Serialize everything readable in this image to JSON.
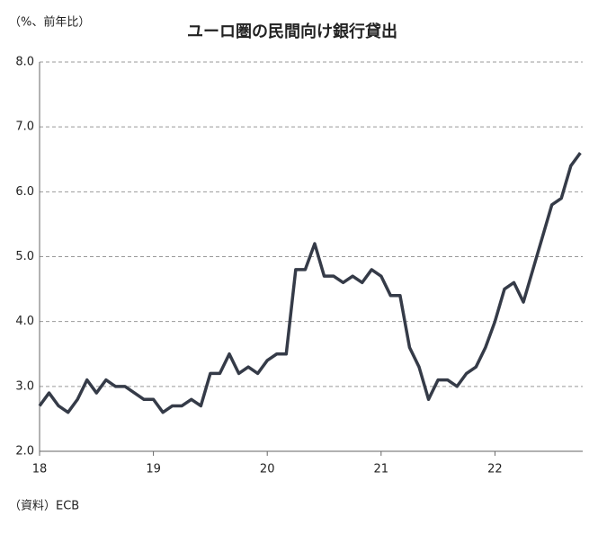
{
  "chart_data": {
    "type": "line",
    "title": "ユーロ圏の民間向け銀行貸出",
    "y_label": "（%、前年比）",
    "source": "（資料）ECB",
    "categories": [
      "18",
      null,
      null,
      null,
      null,
      null,
      null,
      null,
      null,
      null,
      null,
      null,
      "19",
      null,
      null,
      null,
      null,
      null,
      null,
      null,
      null,
      null,
      null,
      null,
      "20",
      null,
      null,
      null,
      null,
      null,
      null,
      null,
      null,
      null,
      null,
      null,
      "21",
      null,
      null,
      null,
      null,
      null,
      null,
      null,
      null,
      null,
      null,
      null,
      "22",
      null,
      null,
      null,
      null,
      null,
      null,
      null,
      null,
      null
    ],
    "series": [
      {
        "name": "民間向け銀行貸出",
        "color": "#353b48",
        "values": [
          2.7,
          2.9,
          2.7,
          2.6,
          2.8,
          3.1,
          2.9,
          3.1,
          3.0,
          3.0,
          2.9,
          2.8,
          2.8,
          2.6,
          2.7,
          2.7,
          2.8,
          2.7,
          3.2,
          3.2,
          3.5,
          3.2,
          3.3,
          3.2,
          3.4,
          3.5,
          3.5,
          4.8,
          4.8,
          5.2,
          4.7,
          4.7,
          4.6,
          4.7,
          4.6,
          4.8,
          4.7,
          4.4,
          4.4,
          3.6,
          3.3,
          2.8,
          3.1,
          3.1,
          3.0,
          3.2,
          3.3,
          3.6,
          4.0,
          4.5,
          4.6,
          4.3,
          4.8,
          5.3,
          5.8,
          5.9,
          6.4,
          6.6
        ]
      }
    ],
    "ylim": [
      2,
      8
    ],
    "yticks": [
      {
        "value": 2,
        "label": "2.0"
      },
      {
        "value": 3,
        "label": "3.0"
      },
      {
        "value": 4,
        "label": "4.0"
      },
      {
        "value": 5,
        "label": "5.0"
      },
      {
        "value": 6,
        "label": "6.0"
      },
      {
        "value": 7,
        "label": "7.0"
      },
      {
        "value": 8,
        "label": "8.0"
      }
    ],
    "grid": true
  }
}
